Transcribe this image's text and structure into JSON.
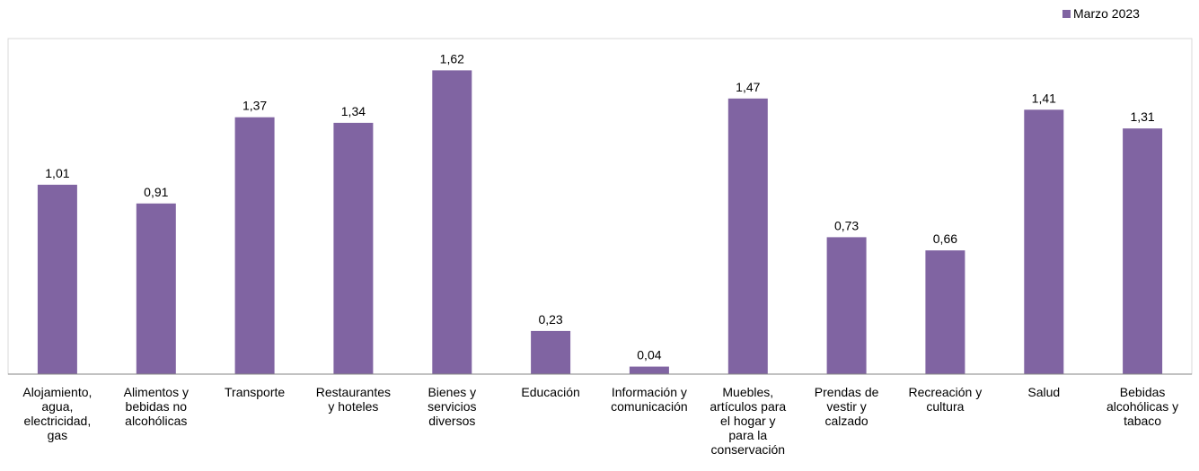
{
  "chart_data": {
    "type": "bar",
    "categories": [
      "Alojamiento,\nagua,\nelectricidad,\ngas",
      "Alimentos y\nbebidas no\nalcohólicas",
      "Transporte",
      "Restaurantes\ny hoteles",
      "Bienes y\nservicios\ndiversos",
      "Educación",
      "Información y\ncomunicación",
      "Muebles,\nartículos para\nel hogar y\npara la\nconservación",
      "Prendas de\nvestir y\ncalzado",
      "Recreación y\ncultura",
      "Salud",
      "Bebidas\nalcohólicas y\ntabaco"
    ],
    "series": [
      {
        "name": "Marzo 2023",
        "color": "#8064a2",
        "values": [
          1.01,
          0.91,
          1.37,
          1.34,
          1.62,
          0.23,
          0.04,
          1.47,
          0.73,
          0.66,
          1.41,
          1.31
        ],
        "value_labels": [
          "1,01",
          "0,91",
          "1,37",
          "1,34",
          "1,62",
          "0,23",
          "0,04",
          "1,47",
          "0,73",
          "0,66",
          "1,41",
          "1,31"
        ]
      }
    ],
    "ylim": [
      0,
      1.8
    ],
    "grid": false,
    "legend_position": "top-right"
  }
}
